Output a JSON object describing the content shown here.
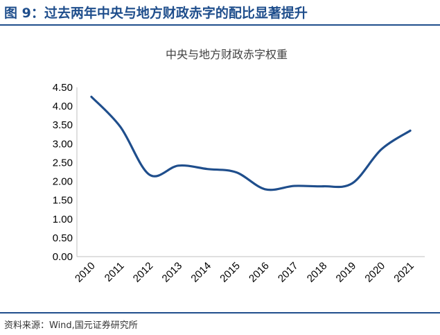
{
  "figure": {
    "title": "图 9：过去两年中央与地方财政赤字的配比显著提升",
    "source": "资料来源：Wind,国元证券研究所",
    "accent_color": "#1f4e8c"
  },
  "chart_data": {
    "type": "line",
    "title": "中央与地方财政赤字权重",
    "xlabel": "",
    "ylabel": "",
    "categories": [
      "2010",
      "2011",
      "2012",
      "2013",
      "2014",
      "2015",
      "2016",
      "2017",
      "2018",
      "2019",
      "2020",
      "2021"
    ],
    "ylim": [
      0,
      4.5
    ],
    "yticks": [
      "0.00",
      "0.50",
      "1.00",
      "1.50",
      "2.00",
      "2.50",
      "3.00",
      "3.50",
      "4.00",
      "4.50"
    ],
    "series": [
      {
        "values": [
          4.25,
          3.45,
          2.18,
          2.42,
          2.33,
          2.24,
          1.79,
          1.88,
          1.87,
          1.95,
          2.85,
          3.35
        ],
        "color": "#1f4e8c",
        "smooth": true
      }
    ],
    "grid": false,
    "legend": "none"
  }
}
